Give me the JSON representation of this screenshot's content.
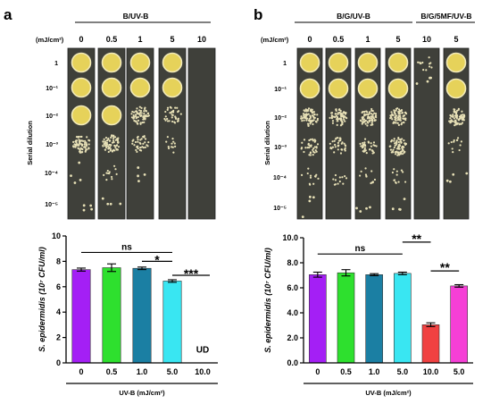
{
  "panel_a": {
    "letter": "a",
    "plate_header": "B/UV-B",
    "dose_unit": "(mJ/cm²)",
    "plate_doses": [
      "0",
      "0.5",
      "1",
      "5",
      "10"
    ],
    "dilution_axis": "Serial dilution",
    "dilutions": [
      "1",
      "10⁻¹",
      "10⁻²",
      "10⁻³",
      "10⁻⁴",
      "10⁻⁵"
    ]
  },
  "panel_b": {
    "letter": "b",
    "plate_header_1": "B/G/UV-B",
    "plate_header_2": "B/G/5MF/UV-B",
    "dose_unit": "(mJ/cm²)",
    "plate_doses": [
      "0",
      "0.5",
      "1",
      "5",
      "10",
      "5"
    ],
    "dilution_axis": "Serial dilution",
    "dilutions": [
      "1",
      "10⁻¹",
      "10⁻²",
      "10⁻³",
      "10⁻⁴",
      "10⁻⁵"
    ]
  },
  "chart_data": [
    {
      "type": "bar",
      "categories": [
        "0",
        "0.5",
        "1.0",
        "5.0",
        "10.0"
      ],
      "values": [
        7.35,
        7.5,
        7.45,
        6.45,
        0
      ],
      "errors": [
        0.12,
        0.3,
        0.1,
        0.1,
        0
      ],
      "colors": [
        "#a41ff5",
        "#2ee02e",
        "#1b7fa3",
        "#39e6f2",
        "#ffffff"
      ],
      "ylabel": "S. epidermidis (10⁷ CFU/ml)",
      "xlabel": "UV-B (mJ/cm²)",
      "ylim": [
        0,
        10
      ],
      "yticks": [
        "0",
        "2",
        "4",
        "6",
        "8",
        "10"
      ],
      "annotations": [
        "ns",
        "*",
        "***",
        "UD"
      ]
    },
    {
      "type": "bar",
      "categories": [
        "0",
        "0.5",
        "1.0",
        "5.0",
        "10.0",
        "5.0"
      ],
      "values": [
        7.05,
        7.2,
        7.05,
        7.15,
        3.05,
        6.15
      ],
      "errors": [
        0.2,
        0.25,
        0.08,
        0.1,
        0.15,
        0.1
      ],
      "colors": [
        "#a41ff5",
        "#2ee02e",
        "#1b7fa3",
        "#39e6f2",
        "#f04141",
        "#f53fd6"
      ],
      "ylabel": "S. epidermidis (10⁷ CFU/ml)",
      "xlabel": "UV-B (mJ/cm²)",
      "ylim": [
        0,
        10
      ],
      "yticks": [
        "0.0",
        "2.0",
        "4.0",
        "6.0",
        "8.0",
        "10.0"
      ],
      "annotations": [
        "ns",
        "**",
        "**"
      ]
    }
  ]
}
